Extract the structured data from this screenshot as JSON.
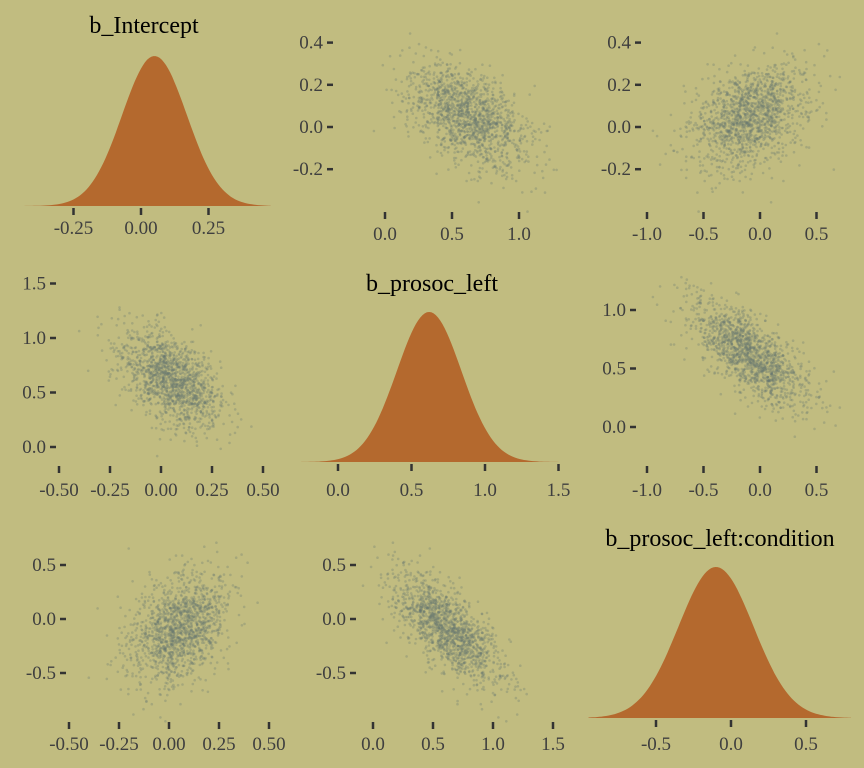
{
  "colors": {
    "background": "#c1bc80",
    "density": "#b4692e",
    "points": "#66776f",
    "ticks": "#333333"
  },
  "chart_data": {
    "type": "scatter",
    "title": "",
    "variables": [
      {
        "name": "b_Intercept",
        "mean": 0.05,
        "sd": 0.12
      },
      {
        "name": "b_prosoc_left",
        "mean": 0.62,
        "sd": 0.22
      },
      {
        "name": "b_prosoc_left:condition",
        "mean": -0.1,
        "sd": 0.25
      }
    ],
    "correlations": {
      "0-1": -0.5,
      "0-2": 0.0,
      "1-2": -0.7
    },
    "n_draws": 1500,
    "panels": [
      {
        "row": 0,
        "col": 0,
        "kind": "density",
        "title": "b_Intercept",
        "xticks": [
          "-0.25",
          "0.00",
          "0.25"
        ]
      },
      {
        "row": 0,
        "col": 1,
        "kind": "scatter",
        "xvar": 1,
        "yvar": 0,
        "xticks": [
          "0.0",
          "0.5",
          "1.0"
        ],
        "yticks": [
          "0.4",
          "0.2",
          "0.0",
          "-0.2"
        ]
      },
      {
        "row": 0,
        "col": 2,
        "kind": "scatter",
        "xvar": 2,
        "yvar": 0,
        "xticks": [
          "-1.0",
          "-0.5",
          "0.0",
          "0.5"
        ],
        "yticks": [
          "0.4",
          "0.2",
          "0.0",
          "-0.2"
        ]
      },
      {
        "row": 1,
        "col": 0,
        "kind": "scatter",
        "xvar": 0,
        "yvar": 1,
        "xticks": [
          "-0.50",
          "-0.25",
          "0.00",
          "0.25",
          "0.50"
        ],
        "yticks": [
          "1.5",
          "1.0",
          "0.5",
          "0.0"
        ]
      },
      {
        "row": 1,
        "col": 1,
        "kind": "density",
        "title": "b_prosoc_left",
        "xticks": [
          "0.0",
          "0.5",
          "1.0",
          "1.5"
        ]
      },
      {
        "row": 1,
        "col": 2,
        "kind": "scatter",
        "xvar": 2,
        "yvar": 1,
        "xticks": [
          "-1.0",
          "-0.5",
          "0.0",
          "0.5"
        ],
        "yticks": [
          "1.0",
          "0.5",
          "0.0"
        ]
      },
      {
        "row": 2,
        "col": 0,
        "kind": "scatter",
        "xvar": 0,
        "yvar": 2,
        "xticks": [
          "-0.50",
          "-0.25",
          "0.00",
          "0.25",
          "0.50"
        ],
        "yticks": [
          "0.5",
          "0.0",
          "-0.5"
        ]
      },
      {
        "row": 2,
        "col": 1,
        "kind": "scatter",
        "xvar": 1,
        "yvar": 2,
        "xticks": [
          "0.0",
          "0.5",
          "1.0",
          "1.5"
        ],
        "yticks": [
          "0.5",
          "0.0",
          "-0.5"
        ]
      },
      {
        "row": 2,
        "col": 2,
        "kind": "density",
        "title": "b_prosoc_left:condition",
        "xticks": [
          "-0.5",
          "0.0",
          "0.5"
        ]
      }
    ]
  }
}
